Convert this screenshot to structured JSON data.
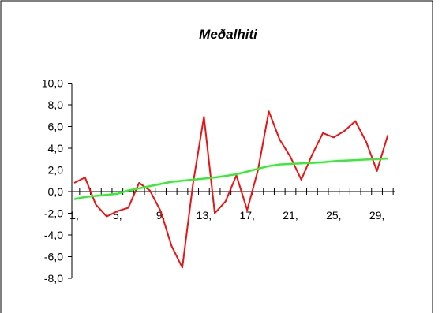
{
  "chart_data": {
    "type": "line",
    "title": "Meðalhiti",
    "xlabel": "",
    "ylabel": "",
    "ylim": [
      -8,
      10
    ],
    "y_ticks": [
      "10,0",
      "8,0",
      "6,0",
      "4,0",
      "2,0",
      "0,0",
      "-2,0",
      "-4,0",
      "-6,0",
      "-8,0"
    ],
    "y_tick_values": [
      10,
      8,
      6,
      4,
      2,
      0,
      -2,
      -4,
      -6,
      -8
    ],
    "x": [
      1,
      2,
      3,
      4,
      5,
      6,
      7,
      8,
      9,
      10,
      11,
      12,
      13,
      14,
      15,
      16,
      17,
      18,
      19,
      20,
      21,
      22,
      23,
      24,
      25,
      26,
      27,
      28,
      29,
      30
    ],
    "x_tick_labels": [
      "1,",
      "5,",
      "9,",
      "13,",
      "17,",
      "21,",
      "25,",
      "29,"
    ],
    "x_tick_label_days": [
      1,
      5,
      9,
      13,
      17,
      21,
      25,
      29
    ],
    "grid": false,
    "legend": "none",
    "series": [
      {
        "color": "#ee1111",
        "values": [
          0.8,
          1.3,
          -1.2,
          -2.3,
          -1.8,
          -1.5,
          0.8,
          0.1,
          -1.8,
          -5.0,
          -7.0,
          0.8,
          6.9,
          -2.0,
          -0.9,
          1.5,
          -1.7,
          2.0,
          7.4,
          4.8,
          3.2,
          1.1,
          3.4,
          5.4,
          5.0,
          5.6,
          6.5,
          4.6,
          1.9,
          5.2
        ]
      },
      {
        "color": "#33ee33",
        "values": [
          -0.7,
          -0.5,
          -0.4,
          -0.3,
          -0.2,
          0.1,
          0.3,
          0.5,
          0.7,
          0.9,
          1.0,
          1.1,
          1.2,
          1.3,
          1.45,
          1.6,
          1.85,
          2.1,
          2.35,
          2.5,
          2.55,
          2.6,
          2.65,
          2.7,
          2.8,
          2.85,
          2.9,
          2.95,
          3.0,
          3.05
        ]
      }
    ]
  }
}
